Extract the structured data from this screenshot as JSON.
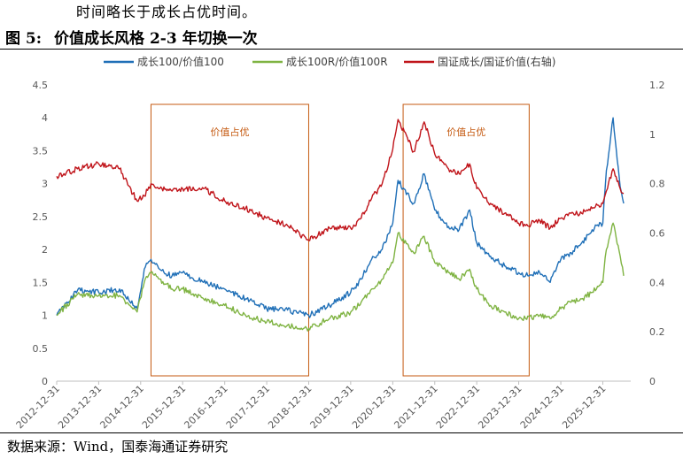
{
  "header": {
    "intro_text": "时间略长于成长占优时间。",
    "figure_label": "图 5:",
    "figure_title": "价值成长风格 2-3 年切换一次",
    "source_text": "数据来源：Wind，国泰海通证券研究"
  },
  "chart_data": {
    "type": "line",
    "legend_position": "top",
    "grid": false,
    "x_tick_labels": [
      "2012-12-31",
      "2013-12-31",
      "2014-12-31",
      "2015-12-31",
      "2016-12-31",
      "2017-12-31",
      "2018-12-31",
      "2019-12-31",
      "2020-12-31",
      "2021-12-31",
      "2022-12-31",
      "2023-12-31",
      "2024-12-31",
      "2025-12-31"
    ],
    "xlim": [
      "2012-12-31",
      "2026-08-31"
    ],
    "y_left": {
      "ylim": [
        0,
        4.5
      ],
      "ticks": [
        "0",
        "0.5",
        "1",
        "1.5",
        "2",
        "2.5",
        "3",
        "3.5",
        "4",
        "4.5"
      ]
    },
    "y_right": {
      "ylim": [
        0,
        1.2
      ],
      "ticks": [
        "0",
        "0.2",
        "0.4",
        "0.6",
        "0.8",
        "1",
        "1.2"
      ],
      "label": "右轴"
    },
    "series": [
      {
        "name": "成长100/价值100",
        "axis": "left",
        "color": "#1f6fb7",
        "x": [
          "2012-12-31",
          "2013-06-30",
          "2013-12-31",
          "2014-06-30",
          "2014-11-30",
          "2015-01-31",
          "2015-03-31",
          "2015-06-15",
          "2015-09-30",
          "2015-12-31",
          "2016-06-30",
          "2016-12-31",
          "2017-06-30",
          "2017-12-31",
          "2018-06-30",
          "2018-12-31",
          "2019-06-30",
          "2019-12-31",
          "2020-03-31",
          "2020-06-30",
          "2020-09-30",
          "2020-12-31",
          "2021-02-15",
          "2021-06-30",
          "2021-09-30",
          "2021-12-31",
          "2022-04-30",
          "2022-07-31",
          "2022-10-31",
          "2022-12-31",
          "2023-04-30",
          "2023-08-31",
          "2023-12-31",
          "2024-02-29",
          "2024-06-30",
          "2024-09-30",
          "2024-12-31",
          "2025-03-31",
          "2025-06-30",
          "2025-09-30",
          "2025-12-31",
          "2026-01-31",
          "2026-03-31",
          "2026-05-31",
          "2026-06-30"
        ],
        "values": [
          1.0,
          1.38,
          1.35,
          1.4,
          1.1,
          1.7,
          1.85,
          1.7,
          1.6,
          1.65,
          1.5,
          1.4,
          1.25,
          1.1,
          1.08,
          1.0,
          1.15,
          1.35,
          1.55,
          1.85,
          2.0,
          2.4,
          3.05,
          2.7,
          3.15,
          2.6,
          2.35,
          2.3,
          2.6,
          2.1,
          1.9,
          1.75,
          1.65,
          1.6,
          1.65,
          1.5,
          1.85,
          1.95,
          2.1,
          2.3,
          2.4,
          3.2,
          4.0,
          2.95,
          2.7
        ]
      },
      {
        "name": "成长100R/价值100R",
        "axis": "left",
        "color": "#7fb342",
        "x": [
          "2012-12-31",
          "2013-06-30",
          "2013-12-31",
          "2014-06-30",
          "2014-11-30",
          "2015-01-31",
          "2015-03-31",
          "2015-06-15",
          "2015-09-30",
          "2015-12-31",
          "2016-06-30",
          "2016-12-31",
          "2017-06-30",
          "2017-12-31",
          "2018-06-30",
          "2018-12-31",
          "2019-06-30",
          "2019-12-31",
          "2020-03-31",
          "2020-06-30",
          "2020-09-30",
          "2020-12-31",
          "2021-02-15",
          "2021-06-30",
          "2021-09-30",
          "2021-12-31",
          "2022-04-30",
          "2022-07-31",
          "2022-10-31",
          "2022-12-31",
          "2023-04-30",
          "2023-08-31",
          "2023-12-31",
          "2024-02-29",
          "2024-06-30",
          "2024-09-30",
          "2024-12-31",
          "2025-03-31",
          "2025-06-30",
          "2025-09-30",
          "2025-12-31",
          "2026-01-31",
          "2026-03-31",
          "2026-05-31",
          "2026-06-30"
        ],
        "values": [
          1.0,
          1.32,
          1.3,
          1.3,
          1.05,
          1.5,
          1.65,
          1.55,
          1.4,
          1.4,
          1.25,
          1.15,
          1.0,
          0.9,
          0.85,
          0.8,
          0.95,
          1.05,
          1.2,
          1.4,
          1.55,
          1.8,
          2.25,
          1.95,
          2.2,
          1.8,
          1.65,
          1.55,
          1.7,
          1.4,
          1.15,
          1.05,
          0.95,
          0.95,
          1.0,
          0.95,
          1.1,
          1.2,
          1.25,
          1.35,
          1.5,
          2.0,
          2.4,
          1.9,
          1.6
        ]
      },
      {
        "name": "国证成长/国证价值(右轴)",
        "axis": "right",
        "color": "#c0141a",
        "x": [
          "2012-12-31",
          "2013-06-30",
          "2013-12-31",
          "2014-06-30",
          "2014-11-30",
          "2015-01-31",
          "2015-03-31",
          "2015-06-15",
          "2015-09-30",
          "2015-12-31",
          "2016-06-30",
          "2016-12-31",
          "2017-06-30",
          "2017-12-31",
          "2018-06-30",
          "2018-12-31",
          "2019-06-30",
          "2019-12-31",
          "2020-03-31",
          "2020-06-30",
          "2020-09-30",
          "2020-12-31",
          "2021-02-15",
          "2021-06-30",
          "2021-09-30",
          "2021-12-31",
          "2022-04-30",
          "2022-07-31",
          "2022-10-31",
          "2022-12-31",
          "2023-04-30",
          "2023-08-31",
          "2023-12-31",
          "2024-02-29",
          "2024-06-30",
          "2024-09-30",
          "2024-12-31",
          "2025-03-31",
          "2025-06-30",
          "2025-09-30",
          "2025-12-31",
          "2026-01-31",
          "2026-03-31",
          "2026-05-31",
          "2026-06-30"
        ],
        "values": [
          0.83,
          0.86,
          0.88,
          0.86,
          0.73,
          0.75,
          0.8,
          0.78,
          0.77,
          0.78,
          0.78,
          0.73,
          0.7,
          0.66,
          0.63,
          0.57,
          0.62,
          0.62,
          0.66,
          0.74,
          0.8,
          0.94,
          1.06,
          0.93,
          1.05,
          0.92,
          0.86,
          0.84,
          0.88,
          0.78,
          0.72,
          0.68,
          0.64,
          0.63,
          0.65,
          0.62,
          0.66,
          0.68,
          0.68,
          0.7,
          0.72,
          0.77,
          0.86,
          0.78,
          0.76
        ]
      }
    ],
    "annotations": [
      {
        "text": "价值占优",
        "x_start": "2015-03-31",
        "x_end": "2018-12-31",
        "color": "#c55a11"
      },
      {
        "text": "价值占优",
        "x_start": "2021-03-31",
        "x_end": "2024-03-31",
        "color": "#c55a11"
      }
    ]
  }
}
